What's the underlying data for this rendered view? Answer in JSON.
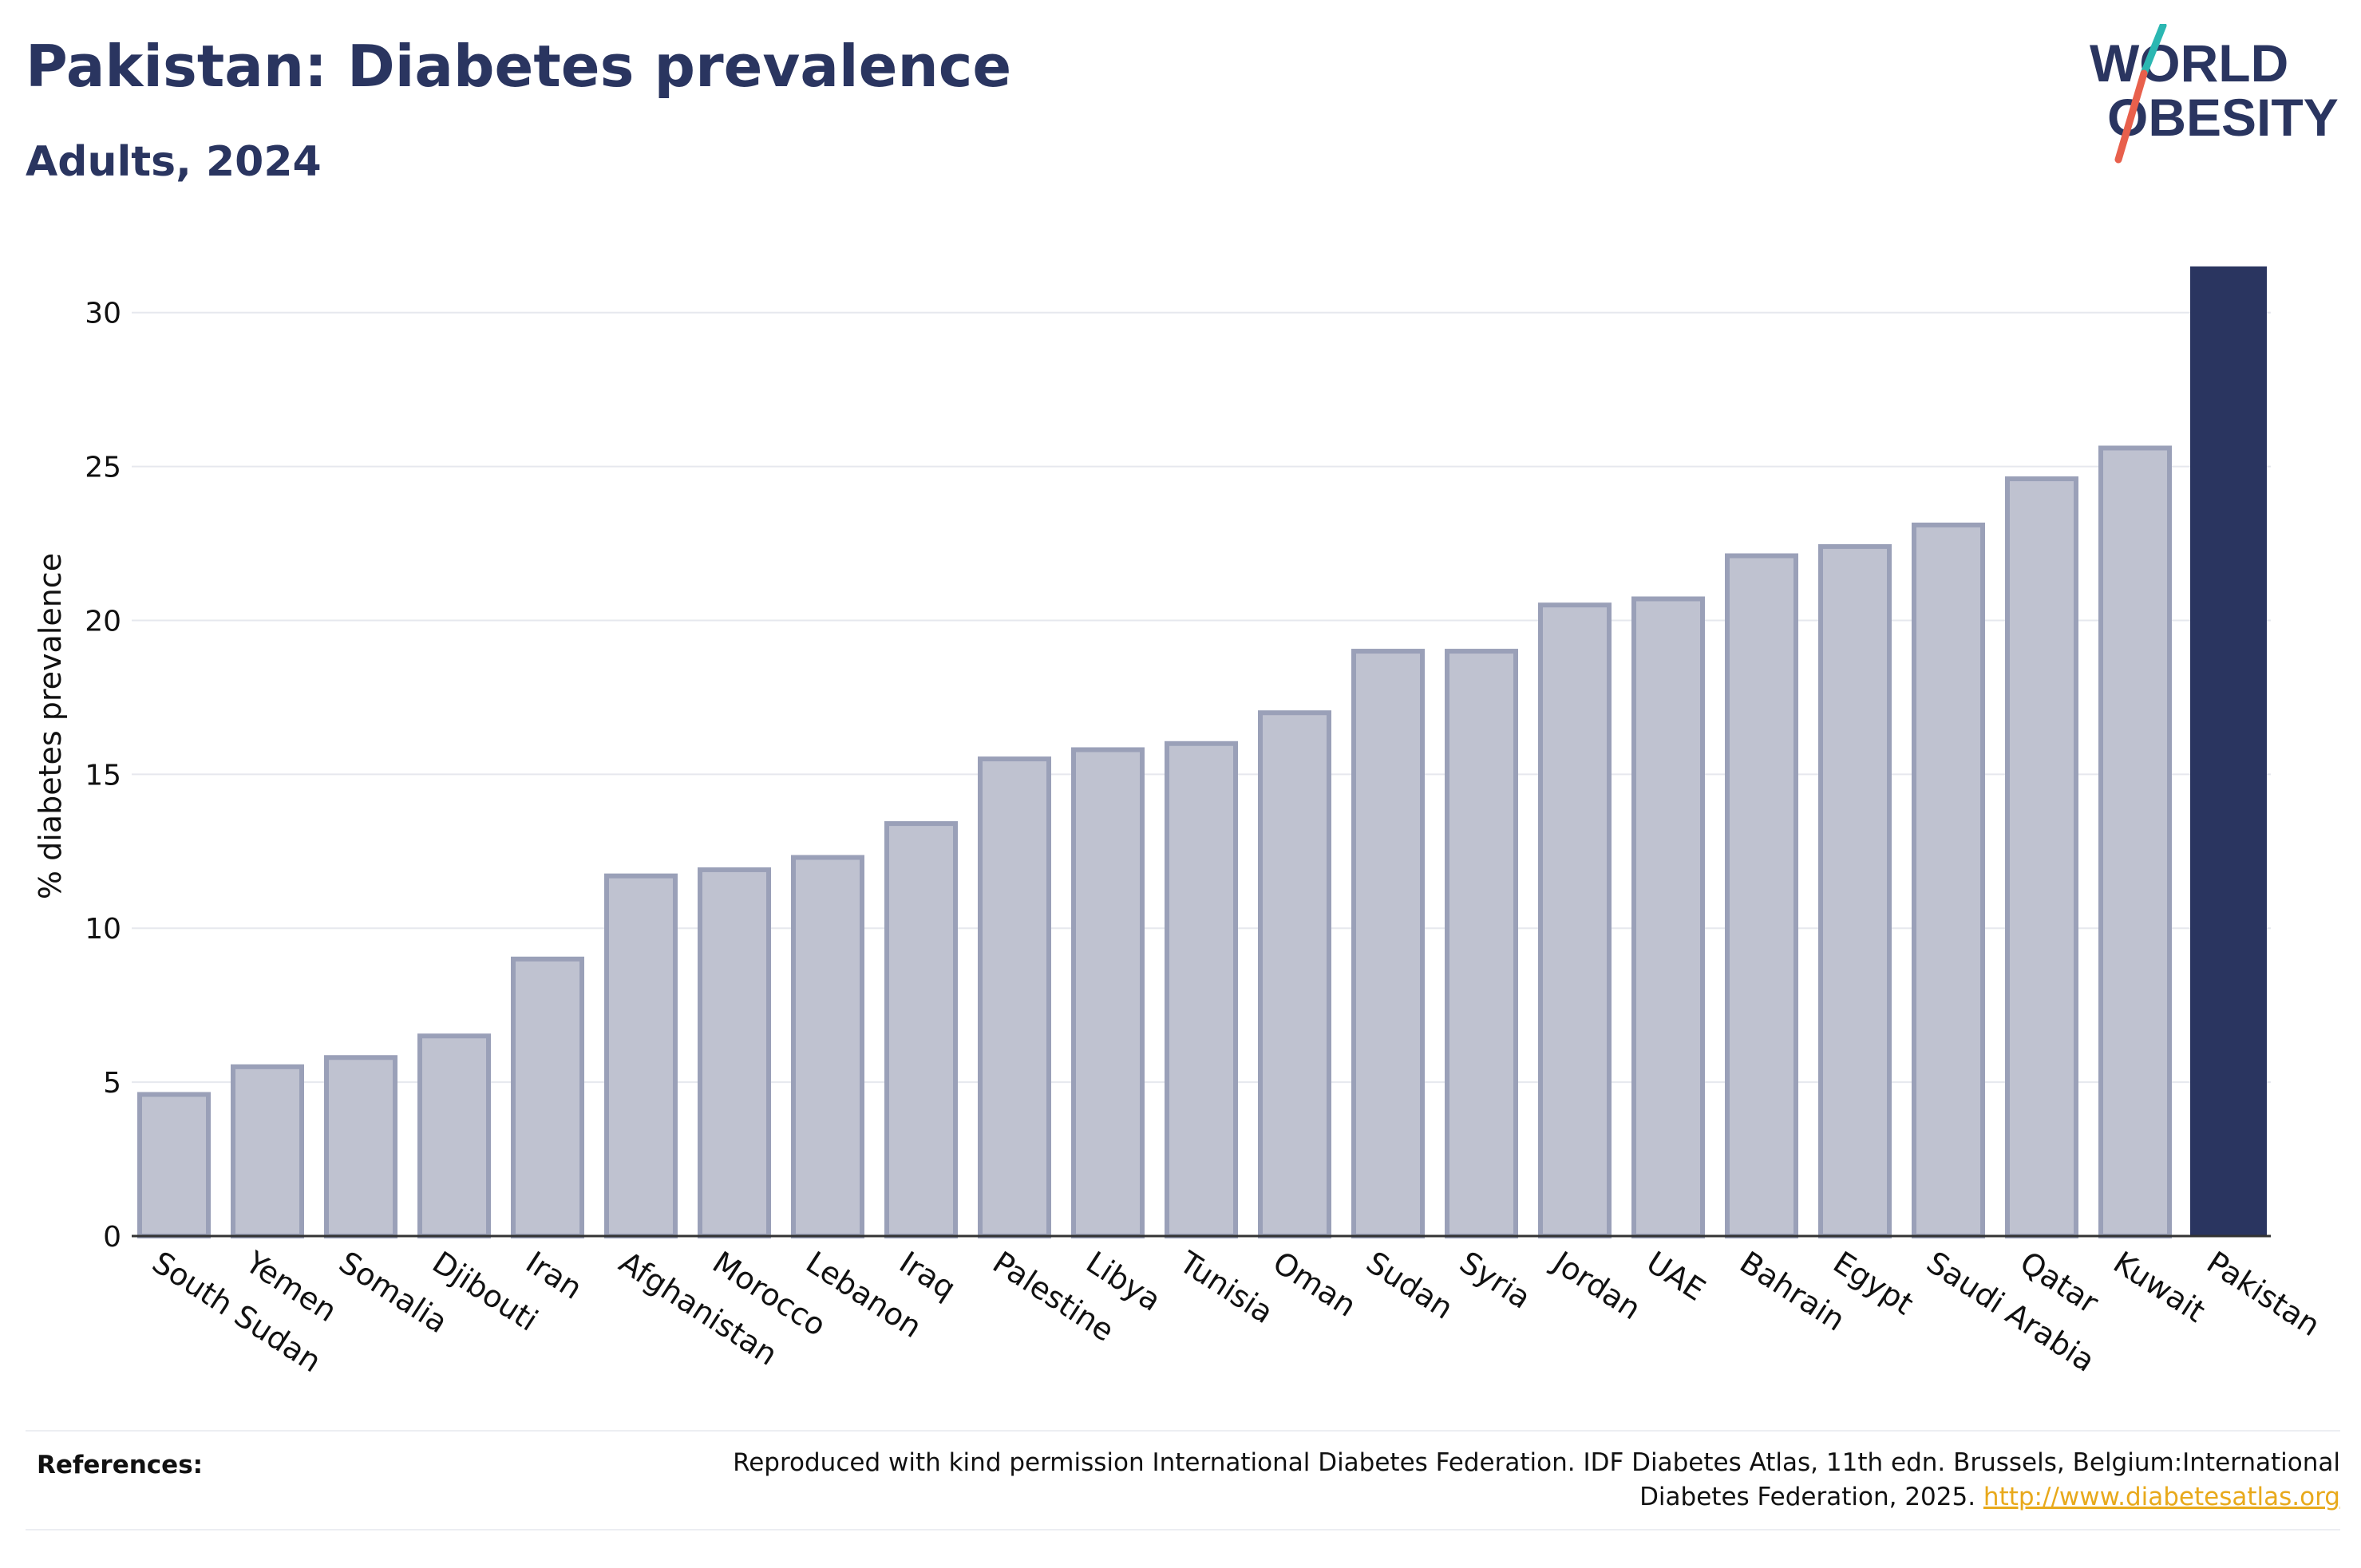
{
  "header": {
    "title": "Pakistan: Diabetes prevalence",
    "subtitle": "Adults, 2024"
  },
  "logo": {
    "line1": "WORLD",
    "line2": "OBESITY",
    "slash_colors": [
      "#2bb7b2",
      "#e8604c"
    ],
    "text_color": "#2a3560"
  },
  "colors": {
    "highlight_bar": "#2a3560",
    "other_bar_fill": "#bfc2d0",
    "other_bar_stroke": "#9aa0b8",
    "grid": "#e6e8ee",
    "axis": "#333333"
  },
  "chart_data": {
    "type": "bar",
    "ylabel": "% diabetes prevalence",
    "xlabel": "",
    "ylim": [
      0,
      31.6
    ],
    "yticks": [
      0,
      5,
      10,
      15,
      20,
      25,
      30
    ],
    "grid": true,
    "highlight": "Pakistan",
    "categories": [
      "South Sudan",
      "Yemen",
      "Somalia",
      "Djibouti",
      "Iran",
      "Afghanistan",
      "Morocco",
      "Lebanon",
      "Iraq",
      "Palestine",
      "Libya",
      "Tunisia",
      "Oman",
      "Sudan",
      "Syria",
      "Jordan",
      "UAE",
      "Bahrain",
      "Egypt",
      "Saudi Arabia",
      "Qatar",
      "Kuwait",
      "Pakistan"
    ],
    "values": [
      4.6,
      5.5,
      5.8,
      6.5,
      9.0,
      11.7,
      11.9,
      12.3,
      13.4,
      15.5,
      15.8,
      16.0,
      17.0,
      19.0,
      19.0,
      20.5,
      20.7,
      22.1,
      22.4,
      23.1,
      24.6,
      25.6,
      31.5
    ]
  },
  "references": {
    "label": "References:",
    "text": "Reproduced with kind permission International Diabetes Federation. IDF Diabetes Atlas, 11th edn. Brussels, Belgium:International Diabetes Federation, 2025.",
    "link": "http://www.diabetesatlas.org"
  }
}
